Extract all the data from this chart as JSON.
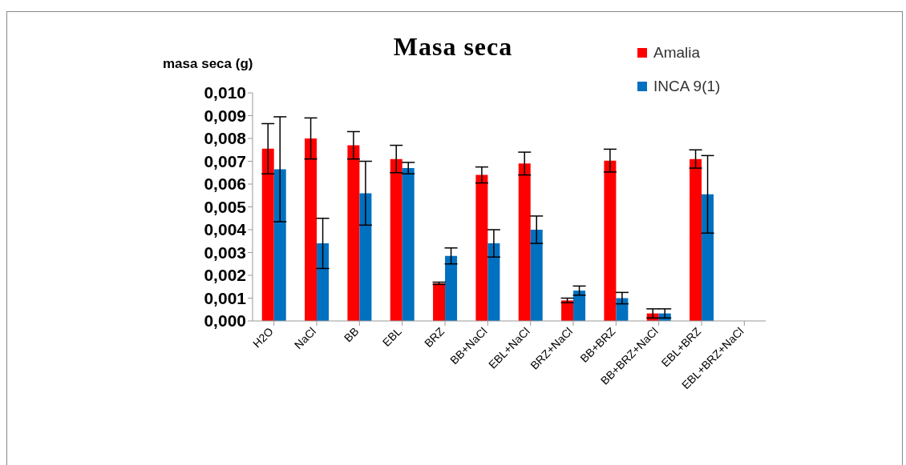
{
  "chart_data": {
    "type": "bar",
    "title": "Masa seca",
    "ylabel": "masa seca (g)",
    "categories": [
      "H2O",
      "NaCl",
      "BB",
      "EBL",
      "BRZ",
      "BB+NaCl",
      "EBL+NaCl",
      "BRZ+NaCl",
      "BB+BRZ",
      "BB+BRZ+NaCl",
      "EBL+BRZ",
      "EBL+BRZ+NaCl"
    ],
    "series": [
      {
        "name": "Amalia",
        "color": "#ff0000",
        "values": [
          0.00755,
          0.008,
          0.0077,
          0.0071,
          0.00165,
          0.0064,
          0.0069,
          0.0009,
          0.00703,
          0.00033,
          0.0071,
          null
        ],
        "errors": [
          0.0011,
          0.0009,
          0.0006,
          0.0006,
          5e-05,
          0.00035,
          0.0005,
          0.0001,
          0.0005,
          0.0002,
          0.0004,
          null
        ]
      },
      {
        "name": "INCA 9(1)",
        "color": "#0070c0",
        "values": [
          0.00665,
          0.0034,
          0.0056,
          0.0067,
          0.00285,
          0.0034,
          0.004,
          0.00133,
          0.001,
          0.00033,
          0.00555,
          null
        ],
        "errors": [
          0.0023,
          0.0011,
          0.0014,
          0.00025,
          0.00035,
          0.0006,
          0.0006,
          0.0002,
          0.00025,
          0.0002,
          0.0017,
          null
        ]
      }
    ],
    "ylim": [
      0,
      0.01
    ],
    "yticks": [
      {
        "value": 0,
        "label": "0,000"
      },
      {
        "value": 0.001,
        "label": "0,001"
      },
      {
        "value": 0.002,
        "label": "0,002"
      },
      {
        "value": 0.003,
        "label": "0,003"
      },
      {
        "value": 0.004,
        "label": "0,004"
      },
      {
        "value": 0.005,
        "label": "0,005"
      },
      {
        "value": 0.006,
        "label": "0,006"
      },
      {
        "value": 0.007,
        "label": "0,007"
      },
      {
        "value": 0.008,
        "label": "0,008"
      },
      {
        "value": 0.009,
        "label": "0,009"
      },
      {
        "value": 0.01,
        "label": "0,010"
      }
    ],
    "grid": false,
    "legend": "top right"
  }
}
